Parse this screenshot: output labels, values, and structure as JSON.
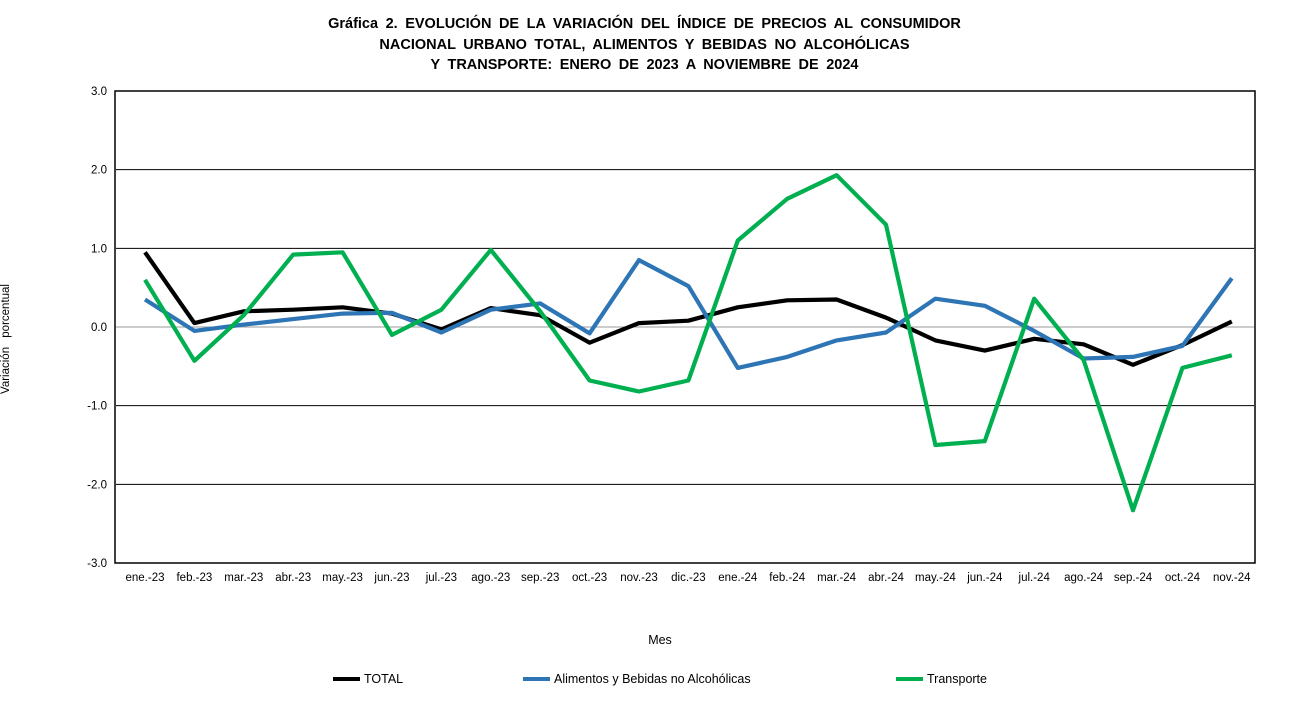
{
  "title": {
    "line1": "Gráfica 2. EVOLUCIÓN DE LA VARIACIÓN DEL ÍNDICE DE PRECIOS AL CONSUMIDOR",
    "line2": "NACIONAL URBANO TOTAL, ALIMENTOS Y BEBIDAS NO ALCOHÓLICAS",
    "line3": "Y TRANSPORTE: ENERO DE 2023 A NOVIEMBRE DE 2024"
  },
  "chart_data": {
    "type": "line",
    "title": "Gráfica 2. EVOLUCIÓN DE LA VARIACIÓN DEL ÍNDICE DE PRECIOS AL CONSUMIDOR NACIONAL URBANO TOTAL, ALIMENTOS Y BEBIDAS NO ALCOHÓLICAS Y TRANSPORTE: ENERO DE 2023 A NOVIEMBRE DE 2024",
    "xlabel": "Mes",
    "ylabel": "Variación porcentual",
    "ylim": [
      -3.0,
      3.0
    ],
    "ytick_step": 1.0,
    "yticks": [
      "3.0",
      "2.0",
      "1.0",
      "0.0",
      "-1.0",
      "-2.0",
      "-3.0"
    ],
    "grid": "horizontal",
    "zero_line_color": "#999999",
    "grid_line_color": "#000000",
    "legend_position": "bottom",
    "categories": [
      "ene.-23",
      "feb.-23",
      "mar.-23",
      "abr.-23",
      "may.-23",
      "jun.-23",
      "jul.-23",
      "ago.-23",
      "sep.-23",
      "oct.-23",
      "nov.-23",
      "dic.-23",
      "ene.-24",
      "feb.-24",
      "mar.-24",
      "abr.-24",
      "may.-24",
      "jun.-24",
      "jul.-24",
      "ago.-24",
      "sep.-24",
      "oct.-24",
      "nov.-24"
    ],
    "series": [
      {
        "name": "TOTAL",
        "color": "#000000",
        "values": [
          0.95,
          0.05,
          0.2,
          0.22,
          0.25,
          0.17,
          -0.03,
          0.24,
          0.15,
          -0.2,
          0.05,
          0.08,
          0.25,
          0.34,
          0.35,
          0.12,
          -0.17,
          -0.3,
          -0.15,
          -0.22,
          -0.48,
          -0.23,
          0.07
        ]
      },
      {
        "name": "Alimentos y Bebidas no Alcohólicas",
        "color": "#2E75B6",
        "values": [
          0.35,
          -0.05,
          0.03,
          0.1,
          0.17,
          0.18,
          -0.07,
          0.22,
          0.3,
          -0.08,
          0.85,
          0.52,
          -0.52,
          -0.38,
          -0.17,
          -0.07,
          0.36,
          0.27,
          -0.05,
          -0.4,
          -0.38,
          -0.24,
          0.62
        ]
      },
      {
        "name": "Transporte",
        "color": "#00B050",
        "values": [
          0.6,
          -0.43,
          0.15,
          0.92,
          0.95,
          -0.1,
          0.22,
          0.98,
          0.2,
          -0.68,
          -0.82,
          -0.68,
          1.1,
          1.63,
          1.93,
          1.3,
          -1.5,
          -1.45,
          0.36,
          -0.42,
          -2.33,
          -0.52,
          -0.36
        ]
      }
    ]
  }
}
